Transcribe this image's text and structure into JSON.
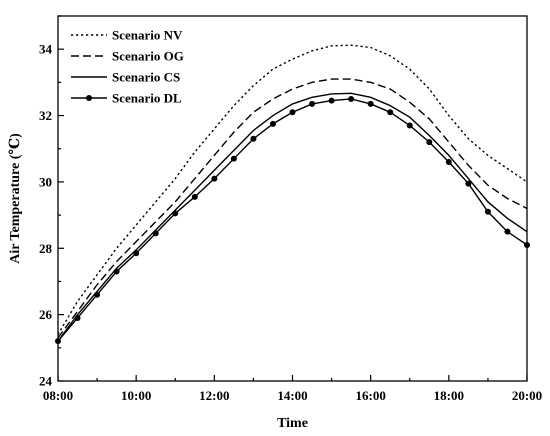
{
  "chart_data": {
    "type": "line",
    "xlabel": "Time",
    "ylabel": "Air Temperature (℃)",
    "x": [
      "08:00",
      "08:30",
      "09:00",
      "09:30",
      "10:00",
      "10:30",
      "11:00",
      "11:30",
      "12:00",
      "12:30",
      "13:00",
      "13:30",
      "14:00",
      "14:30",
      "15:00",
      "15:30",
      "16:00",
      "16:30",
      "17:00",
      "17:30",
      "18:00",
      "18:30",
      "19:00",
      "19:30",
      "20:00"
    ],
    "xticks": [
      "08:00",
      "10:00",
      "12:00",
      "14:00",
      "16:00",
      "18:00",
      "20:00"
    ],
    "ylim": [
      24,
      35
    ],
    "yticks": [
      24,
      26,
      28,
      30,
      32,
      34
    ],
    "legend_position": "top-left",
    "grid": false,
    "series": [
      {
        "name": "Scenario NV",
        "style": "dotted",
        "values": [
          25.4,
          26.4,
          27.2,
          28.0,
          28.7,
          29.4,
          30.1,
          30.9,
          31.6,
          32.3,
          32.9,
          33.4,
          33.7,
          33.95,
          34.1,
          34.12,
          34.05,
          33.8,
          33.4,
          32.8,
          32.0,
          31.3,
          30.8,
          30.4,
          30.0
        ]
      },
      {
        "name": "Scenario OG",
        "style": "dashed",
        "values": [
          25.3,
          26.1,
          26.9,
          27.6,
          28.2,
          28.8,
          29.4,
          30.1,
          30.8,
          31.5,
          32.1,
          32.5,
          32.8,
          33.0,
          33.1,
          33.1,
          33.0,
          32.8,
          32.4,
          31.9,
          31.2,
          30.5,
          29.9,
          29.5,
          29.2
        ]
      },
      {
        "name": "Scenario CS",
        "style": "solid",
        "values": [
          25.2,
          26.0,
          26.7,
          27.4,
          27.95,
          28.55,
          29.15,
          29.75,
          30.35,
          30.95,
          31.55,
          32.0,
          32.35,
          32.55,
          32.65,
          32.67,
          32.55,
          32.3,
          31.95,
          31.4,
          30.8,
          30.1,
          29.4,
          28.9,
          28.5
        ]
      },
      {
        "name": "Scenario DL",
        "style": "solid-marker",
        "values": [
          25.2,
          25.9,
          26.6,
          27.3,
          27.85,
          28.45,
          29.05,
          29.55,
          30.1,
          30.7,
          31.3,
          31.75,
          32.1,
          32.35,
          32.45,
          32.5,
          32.35,
          32.1,
          31.7,
          31.2,
          30.6,
          29.95,
          29.1,
          28.5,
          28.1
        ]
      }
    ]
  }
}
